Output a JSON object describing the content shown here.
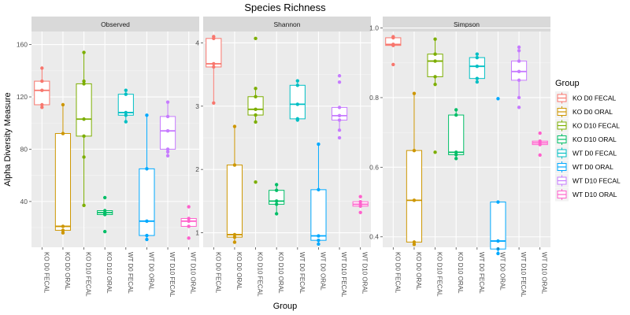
{
  "chart_data": {
    "type": "box",
    "title": "Species Richness",
    "xlabel": "Group",
    "ylabel": "Alpha Diversity Measure",
    "legend": {
      "title": "Group",
      "placement": "right",
      "entries": [
        "KO D0 FECAL",
        "KO D0 ORAL",
        "KO D10 FECAL",
        "KO D10 ORAL",
        "WT D0 FECAL",
        "WT D0 ORAL",
        "WT D10 FECAL",
        "WT D10 ORAL"
      ]
    },
    "categories": [
      "KO D0 FECAL",
      "KO D0 ORAL",
      "KO D10 FECAL",
      "KO D10 ORAL",
      "WT D0 FECAL",
      "WT D0 ORAL",
      "WT D10 FECAL",
      "WT D10 ORAL"
    ],
    "colors": [
      "#F8766D",
      "#CD9600",
      "#7CAE00",
      "#00BE67",
      "#00BFC4",
      "#00A9FF",
      "#C77CFF",
      "#FF61CC"
    ],
    "panels": [
      {
        "name": "Observed",
        "ylim": [
          5,
          170
        ],
        "yticks": [
          40,
          80,
          120,
          160
        ],
        "groups": [
          {
            "q1": 114,
            "median": 125,
            "q3": 132,
            "min": 112,
            "max": 142,
            "points": [
              142,
              132,
              125,
              114,
              112
            ]
          },
          {
            "q1": 18,
            "median": 21,
            "q3": 92,
            "min": 16,
            "max": 114,
            "points": [
              114,
              92,
              21,
              18,
              16
            ]
          },
          {
            "q1": 90,
            "median": 103,
            "q3": 130,
            "min": 37,
            "max": 154,
            "points": [
              154,
              132,
              130,
              103,
              90,
              74,
              37
            ]
          },
          {
            "q1": 30,
            "median": 31.5,
            "q3": 33,
            "min": 30,
            "max": 33,
            "points": [
              43,
              33,
              31,
              30,
              17
            ]
          },
          {
            "q1": 106,
            "median": 108,
            "q3": 122,
            "min": 101,
            "max": 125,
            "points": [
              125,
              122,
              108,
              106,
              101
            ]
          },
          {
            "q1": 14,
            "median": 25,
            "q3": 65,
            "min": 11,
            "max": 106,
            "points": [
              106,
              65,
              25,
              14,
              11
            ]
          },
          {
            "q1": 80,
            "median": 94,
            "q3": 105,
            "min": 75,
            "max": 116,
            "points": [
              116,
              105,
              94,
              80,
              78,
              75
            ]
          },
          {
            "q1": 21,
            "median": 25,
            "q3": 27,
            "min": 21,
            "max": 27,
            "points": [
              36,
              27,
              25,
              21,
              12
            ]
          }
        ]
      },
      {
        "name": "Shannon",
        "ylim": [
          0.77,
          4.18
        ],
        "yticks": [
          1,
          2,
          3,
          4
        ],
        "groups": [
          {
            "q1": 3.62,
            "median": 3.67,
            "q3": 4.07,
            "min": 3.05,
            "max": 4.1,
            "points": [
              4.1,
              4.07,
              3.67,
              3.62,
              3.05
            ]
          },
          {
            "q1": 0.93,
            "median": 0.97,
            "q3": 2.07,
            "min": 0.85,
            "max": 2.68,
            "points": [
              2.68,
              2.07,
              0.97,
              0.93,
              0.85
            ]
          },
          {
            "q1": 2.86,
            "median": 2.95,
            "q3": 3.15,
            "min": 2.75,
            "max": 3.28,
            "points": [
              4.07,
              3.28,
              3.15,
              2.95,
              2.86,
              2.75,
              1.8
            ]
          },
          {
            "q1": 1.45,
            "median": 1.5,
            "q3": 1.67,
            "min": 1.3,
            "max": 1.76,
            "points": [
              1.76,
              1.67,
              1.5,
              1.45,
              1.3
            ]
          },
          {
            "q1": 2.8,
            "median": 3.03,
            "q3": 3.33,
            "min": 2.78,
            "max": 3.4,
            "points": [
              3.4,
              3.33,
              3.03,
              2.8,
              2.78
            ]
          },
          {
            "q1": 0.88,
            "median": 0.95,
            "q3": 1.68,
            "min": 0.82,
            "max": 2.4,
            "points": [
              2.4,
              1.68,
              0.95,
              0.88,
              0.82
            ]
          },
          {
            "q1": 2.78,
            "median": 2.85,
            "q3": 2.98,
            "min": 2.62,
            "max": 2.98,
            "points": [
              3.48,
              3.38,
              2.98,
              2.85,
              2.78,
              2.62,
              2.5
            ]
          },
          {
            "q1": 1.42,
            "median": 1.45,
            "q3": 1.49,
            "min": 1.42,
            "max": 1.49,
            "points": [
              1.57,
              1.49,
              1.45,
              1.42,
              1.32
            ]
          }
        ]
      },
      {
        "name": "Simpson",
        "ylim": [
          0.37,
          0.99
        ],
        "yticks": [
          0.4,
          0.6,
          0.8,
          1.0
        ],
        "groups": [
          {
            "q1": 0.95,
            "median": 0.953,
            "q3": 0.972,
            "min": 0.95,
            "max": 0.975,
            "points": [
              0.975,
              0.972,
              0.953,
              0.95,
              0.895
            ]
          },
          {
            "q1": 0.385,
            "median": 0.505,
            "q3": 0.648,
            "min": 0.378,
            "max": 0.812,
            "points": [
              0.812,
              0.648,
              0.505,
              0.385,
              0.378
            ]
          },
          {
            "q1": 0.86,
            "median": 0.905,
            "q3": 0.925,
            "min": 0.838,
            "max": 0.968,
            "points": [
              0.968,
              0.925,
              0.905,
              0.86,
              0.838,
              0.643
            ]
          },
          {
            "q1": 0.636,
            "median": 0.643,
            "q3": 0.75,
            "min": 0.625,
            "max": 0.765,
            "points": [
              0.765,
              0.75,
              0.643,
              0.636,
              0.625
            ]
          },
          {
            "q1": 0.855,
            "median": 0.89,
            "q3": 0.915,
            "min": 0.845,
            "max": 0.925,
            "points": [
              0.925,
              0.915,
              0.89,
              0.855,
              0.845
            ]
          },
          {
            "q1": 0.365,
            "median": 0.388,
            "q3": 0.5,
            "min": 0.352,
            "max": 0.5,
            "points": [
              0.797,
              0.5,
              0.388,
              0.365,
              0.352
            ]
          },
          {
            "q1": 0.85,
            "median": 0.875,
            "q3": 0.905,
            "min": 0.8,
            "max": 0.935,
            "points": [
              0.945,
              0.935,
              0.905,
              0.875,
              0.85,
              0.8,
              0.772
            ]
          },
          {
            "q1": 0.665,
            "median": 0.67,
            "q3": 0.675,
            "min": 0.665,
            "max": 0.675,
            "points": [
              0.698,
              0.675,
              0.67,
              0.665,
              0.635
            ]
          }
        ]
      }
    ]
  }
}
